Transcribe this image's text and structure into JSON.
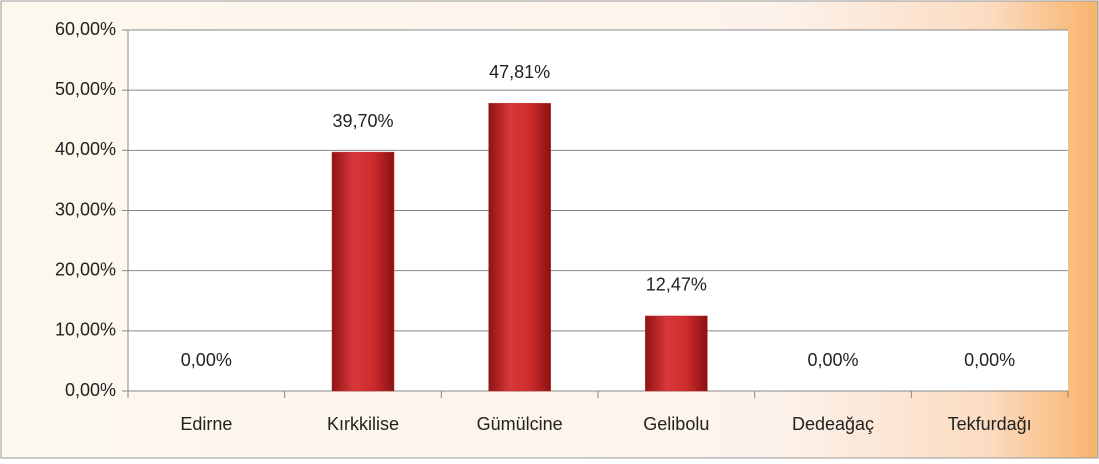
{
  "chart_data": {
    "type": "bar",
    "categories": [
      "Edirne",
      "Kırkkilise",
      "Gümülcine",
      "Gelibolu",
      "Dedeağaç",
      "Tekfurdağı"
    ],
    "values": [
      0,
      39.7,
      47.81,
      12.47,
      0,
      0
    ],
    "value_labels": [
      "0,00%",
      "39,70%",
      "47,81%",
      "12,47%",
      "0,00%",
      "0,00%"
    ],
    "color": "#c0282a",
    "ylim": [
      0,
      60
    ],
    "yticks": [
      {
        "value": 0,
        "label": "0,00%"
      },
      {
        "value": 10,
        "label": "10,00%"
      },
      {
        "value": 20,
        "label": "20,00%"
      },
      {
        "value": 30,
        "label": "30,00%"
      },
      {
        "value": 40,
        "label": "40,00%"
      },
      {
        "value": 50,
        "label": "50,00%"
      },
      {
        "value": 60,
        "label": "60,00%"
      }
    ],
    "grid": true
  }
}
